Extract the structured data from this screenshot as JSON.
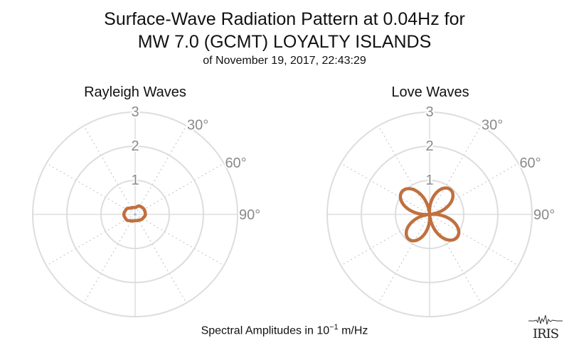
{
  "title_line1": "Surface-Wave Radiation Pattern at 0.04Hz for",
  "title_line2": "MW 7.0 (GCMT) LOYALTY ISLANDS",
  "subtitle": "of November 19, 2017, 22:43:29",
  "footer_prefix": "Spectral Amplitudes in 10",
  "footer_exponent": "−1",
  "footer_suffix": " m/Hz",
  "logo_text": "IRIS",
  "colors": {
    "pattern": "#c0703e",
    "grid": "#dddddd",
    "grid_dotted": "#c8c8c8",
    "labels": "#8a8a8a"
  },
  "chart_data": [
    {
      "type": "polar",
      "title": "Rayleigh Waves",
      "radial_range": [
        0,
        3
      ],
      "radial_ticks": [
        "1",
        "2",
        "3"
      ],
      "angle_ticks": [
        "30°",
        "60°",
        "90°"
      ],
      "series": [
        {
          "angle_deg": [
            0,
            30,
            60,
            90,
            120,
            150,
            180,
            210,
            240,
            270,
            300,
            330
          ],
          "amplitude": [
            0.2,
            0.28,
            0.3,
            0.3,
            0.25,
            0.2,
            0.18,
            0.22,
            0.3,
            0.33,
            0.3,
            0.22
          ]
        }
      ]
    },
    {
      "type": "polar",
      "title": "Love Waves",
      "radial_range": [
        0,
        3
      ],
      "radial_ticks": [
        "1",
        "2",
        "3"
      ],
      "angle_ticks": [
        "30°",
        "60°",
        "90°"
      ],
      "series": [
        {
          "lobe_angles_deg": [
            40,
            130,
            220,
            310
          ],
          "lobe_amplitudes": [
            0.95,
            1.05,
            0.95,
            1.05
          ]
        }
      ]
    }
  ]
}
